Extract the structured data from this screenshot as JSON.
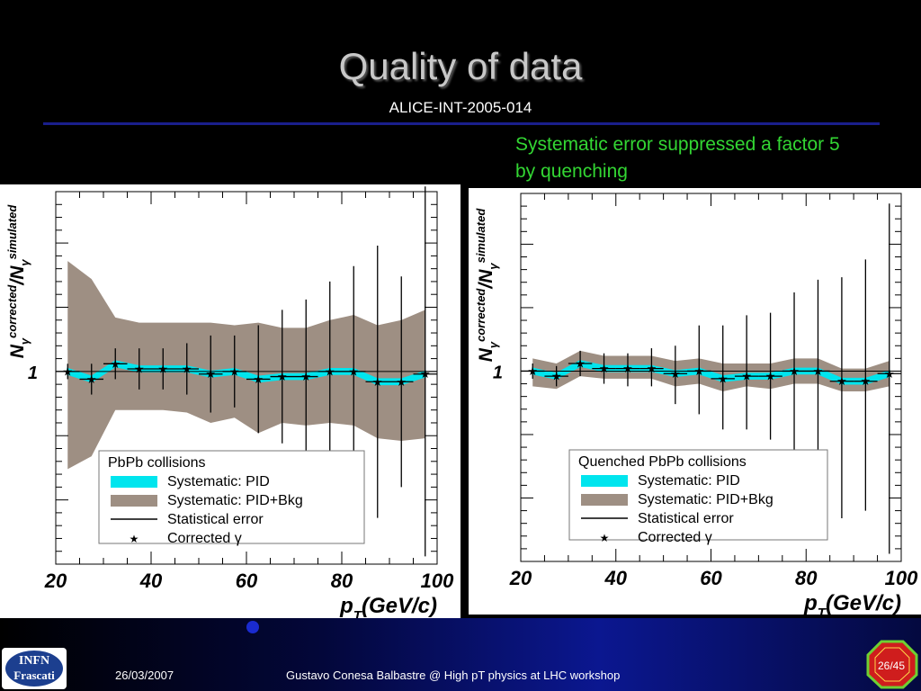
{
  "slide": {
    "title": "Quality of data",
    "subtitle": "ALICE-INT-2005-014",
    "note": "Systematic error suppressed a factor 5 by quenching"
  },
  "footer": {
    "logo_line1": "INFN",
    "logo_line2": "Frascati",
    "date": "26/03/2007",
    "text": "Gustavo Conesa Balbastre @ High pT physics at LHC workshop",
    "page": "26/45"
  },
  "colors": {
    "background": "#000000",
    "title": "#c8c8c8",
    "note": "#33d633",
    "pid_band": "#00e5ee",
    "bkg_band": "#9e8f83"
  },
  "chart_data": [
    {
      "type": "line",
      "panel": "left",
      "ylabel_main": "N",
      "ylabel_sub": "γ",
      "ylabel_sup": "corrected",
      "ylabel_mid": "/N",
      "ylabel_sub2": "γ",
      "ylabel_sup2": "simulated",
      "ytick_label": "1",
      "xlabel_main": "p",
      "xlabel_sub": "T",
      "xlabel_rest": "(GeV/c)",
      "xlim": [
        20,
        100
      ],
      "ylim": [
        0.25,
        1.7
      ],
      "xticks": [
        20,
        40,
        60,
        80,
        100
      ],
      "legend": {
        "header": "PbPb collisions",
        "items": [
          "Systematic: PID",
          "Systematic: PID+Bkg",
          "Statistical error",
          "Corrected γ"
        ]
      },
      "x": [
        22.5,
        27.5,
        32.5,
        37.5,
        42.5,
        47.5,
        52.5,
        57.5,
        62.5,
        67.5,
        72.5,
        77.5,
        82.5,
        87.5,
        92.5,
        97.5
      ],
      "corrected": [
        1.0,
        0.97,
        1.03,
        1.01,
        1.01,
        1.01,
        0.99,
        1.0,
        0.97,
        0.98,
        0.98,
        1.0,
        1.0,
        0.96,
        0.96,
        0.99
      ],
      "stat_low": [
        0.97,
        0.91,
        0.97,
        0.93,
        0.93,
        0.91,
        0.84,
        0.86,
        0.76,
        0.72,
        0.68,
        0.65,
        0.59,
        0.43,
        0.55,
        0.28
      ],
      "stat_high": [
        1.03,
        1.03,
        1.09,
        1.09,
        1.09,
        1.11,
        1.14,
        1.14,
        1.18,
        1.24,
        1.28,
        1.35,
        1.41,
        1.49,
        1.37,
        1.72
      ],
      "pid_low": [
        0.99,
        0.96,
        1.02,
        1.0,
        1.0,
        1.0,
        0.98,
        0.99,
        0.96,
        0.97,
        0.97,
        0.99,
        0.99,
        0.95,
        0.95,
        0.98
      ],
      "pid_high": [
        1.01,
        0.98,
        1.04,
        1.02,
        1.02,
        1.02,
        1.0,
        1.01,
        0.98,
        0.99,
        0.99,
        1.01,
        1.01,
        0.97,
        0.97,
        1.0
      ],
      "bkg_low": [
        0.62,
        0.67,
        0.85,
        0.85,
        0.85,
        0.84,
        0.8,
        0.82,
        0.76,
        0.8,
        0.79,
        0.8,
        0.79,
        0.74,
        0.73,
        0.74
      ],
      "bkg_high": [
        1.43,
        1.36,
        1.21,
        1.19,
        1.19,
        1.19,
        1.19,
        1.18,
        1.19,
        1.17,
        1.17,
        1.2,
        1.22,
        1.18,
        1.2,
        1.24
      ]
    },
    {
      "type": "line",
      "panel": "right",
      "ylabel_main": "N",
      "ylabel_sub": "γ",
      "ylabel_sup": "corrected",
      "ylabel_mid": "/N",
      "ylabel_sub2": "γ",
      "ylabel_sup2": "simulated",
      "ytick_label": "1",
      "xlabel_main": "p",
      "xlabel_sub": "T",
      "xlabel_rest": "(GeV/c)",
      "xlim": [
        20,
        100
      ],
      "ylim": [
        0.25,
        1.7
      ],
      "xticks": [
        20,
        40,
        60,
        80,
        100
      ],
      "legend": {
        "header": "Quenched PbPb collisions",
        "items": [
          "Systematic: PID",
          "Systematic: PID+Bkg",
          "Statistical error",
          "Corrected γ"
        ]
      },
      "x": [
        22.5,
        27.5,
        32.5,
        37.5,
        42.5,
        47.5,
        52.5,
        57.5,
        62.5,
        67.5,
        72.5,
        77.5,
        82.5,
        87.5,
        92.5,
        97.5
      ],
      "corrected": [
        1.0,
        0.98,
        1.03,
        1.01,
        1.01,
        1.01,
        0.99,
        1.0,
        0.97,
        0.98,
        0.98,
        1.0,
        1.0,
        0.96,
        0.96,
        0.99
      ],
      "stat_low": [
        0.97,
        0.94,
        0.98,
        0.95,
        0.94,
        0.94,
        0.87,
        0.83,
        0.77,
        0.77,
        0.73,
        0.63,
        0.57,
        0.42,
        0.45,
        0.28
      ],
      "stat_high": [
        1.03,
        1.02,
        1.08,
        1.07,
        1.07,
        1.09,
        1.1,
        1.18,
        1.18,
        1.22,
        1.23,
        1.31,
        1.36,
        1.37,
        1.44,
        1.66
      ],
      "pid_low": [
        0.99,
        0.97,
        1.02,
        1.0,
        1.0,
        1.0,
        0.98,
        0.99,
        0.96,
        0.97,
        0.97,
        0.99,
        0.99,
        0.95,
        0.95,
        0.98
      ],
      "pid_high": [
        1.01,
        0.99,
        1.04,
        1.02,
        1.02,
        1.02,
        1.0,
        1.01,
        0.98,
        0.99,
        0.99,
        1.01,
        1.01,
        0.97,
        0.97,
        1.0
      ],
      "bkg_low": [
        0.94,
        0.93,
        0.98,
        0.97,
        0.97,
        0.97,
        0.94,
        0.95,
        0.92,
        0.94,
        0.93,
        0.95,
        0.95,
        0.92,
        0.92,
        0.94
      ],
      "bkg_high": [
        1.05,
        1.03,
        1.08,
        1.06,
        1.06,
        1.06,
        1.04,
        1.05,
        1.03,
        1.03,
        1.03,
        1.05,
        1.05,
        1.01,
        1.01,
        1.04
      ]
    }
  ]
}
